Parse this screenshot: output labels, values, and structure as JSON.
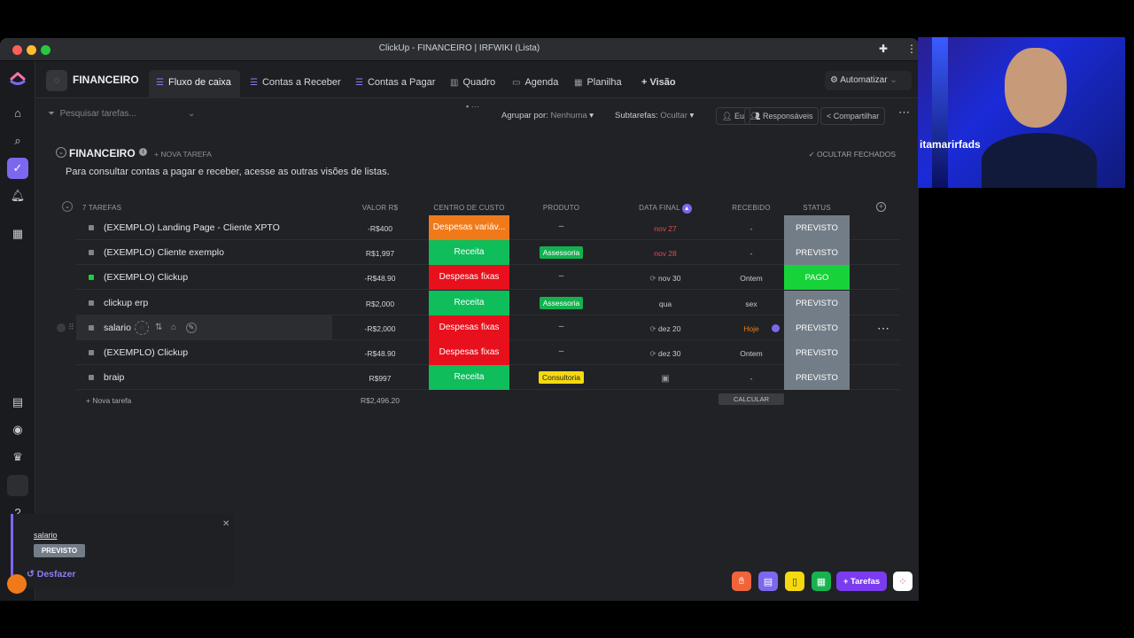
{
  "window": {
    "title": "ClickUp - FINANCEIRO | IRFWIKI (Lista)"
  },
  "header": {
    "space_name": "FINANCEIRO",
    "tabs": [
      {
        "label": "Fluxo de caixa",
        "icon": "list-icon",
        "active": true
      },
      {
        "label": "Contas a Receber",
        "icon": "list-icon"
      },
      {
        "label": "Contas a Pagar",
        "icon": "list-icon"
      },
      {
        "label": "Quadro",
        "icon": "board-icon"
      },
      {
        "label": "Agenda",
        "icon": "calendar-icon"
      },
      {
        "label": "Planilha",
        "icon": "table-icon"
      }
    ],
    "add_view_label": "+ Visão",
    "automate_label": "Automatizar"
  },
  "toolbar": {
    "search_placeholder": "Pesquisar tarefas...",
    "group_by_label": "Agrupar por:",
    "group_by_value": "Nenhuma",
    "subtasks_label": "Subtarefas:",
    "subtasks_value": "Ocultar",
    "me_label": "Eu",
    "assignees_label": "Responsáveis",
    "share_label": "Compartilhar"
  },
  "list": {
    "title": "FINANCEIRO",
    "new_task_label": "+ NOVA TAREFA",
    "hide_closed_label": "OCULTAR FECHADOS",
    "description": "Para consultar contas a pagar e receber, acesse as outras visões de listas.",
    "task_count_label": "7 TAREFAS",
    "columns": {
      "value": "VALOR R$",
      "cost_center": "CENTRO DE CUSTO",
      "product": "PRODUTO",
      "due_date": "DATA FINAL",
      "received": "RECEBIDO",
      "status": "STATUS"
    },
    "rows": [
      {
        "name": "(EXEMPLO) Landing Page - Cliente XPTO",
        "value": "-R$400",
        "cost_center": "Despesas variáv...",
        "cc_color": "#f07a1a",
        "product": "–",
        "product_color": "",
        "date": "nov 27",
        "date_color": "#e5484d",
        "received": "-",
        "status": "PREVISTO",
        "status_color": "#737d87",
        "square": "#80858d"
      },
      {
        "name": "(EXEMPLO) Cliente exemplo",
        "value": "R$1,997",
        "cost_center": "Receita",
        "cc_color": "#0fbd5b",
        "product": "Assessoria",
        "product_color": "#13b24f",
        "date": "nov 28",
        "date_color": "#e5484d",
        "received": "-",
        "status": "PREVISTO",
        "status_color": "#737d87",
        "square": "#80858d"
      },
      {
        "name": "(EXEMPLO) Clickup",
        "value": "-R$48.90",
        "cost_center": "Despesas fixas",
        "cc_color": "#e8101c",
        "product": "–",
        "product_color": "",
        "date": "nov 30",
        "date_color": "#c8cacf",
        "received": "Ontem",
        "status": "PAGO",
        "status_color": "#18d23a",
        "square": "#18d23a"
      },
      {
        "name": "clickup erp",
        "value": "R$2,000",
        "cost_center": "Receita",
        "cc_color": "#0fbd5b",
        "product": "Assessoria",
        "product_color": "#13b24f",
        "date": "qua",
        "date_color": "#c8cacf",
        "received": "sex",
        "status": "PREVISTO",
        "status_color": "#737d87",
        "square": "#80858d"
      },
      {
        "name": "salario",
        "value": "-R$2,000",
        "cost_center": "Despesas fixas",
        "cc_color": "#e8101c",
        "product": "–",
        "product_color": "",
        "date": "dez 20",
        "date_color": "#c8cacf",
        "received": "Hoje",
        "received_color": "#f07a1a",
        "status": "PREVISTO",
        "status_color": "#737d87",
        "square": "#80858d"
      },
      {
        "name": "(EXEMPLO) Clickup",
        "value": "-R$48.90",
        "cost_center": "Despesas fixas",
        "cc_color": "#e8101c",
        "product": "–",
        "product_color": "",
        "date": "dez 30",
        "date_color": "#c8cacf",
        "received": "Ontem",
        "status": "PREVISTO",
        "status_color": "#737d87",
        "square": "#80858d"
      },
      {
        "name": "braip",
        "value": "R$997",
        "cost_center": "Receita",
        "cc_color": "#0fbd5b",
        "product": "Consultoria",
        "product_color": "#f6d90f",
        "date": "",
        "date_color": "#c8cacf",
        "received": "-",
        "status": "PREVISTO",
        "status_color": "#737d87",
        "square": "#80858d"
      }
    ],
    "footer": {
      "add_task": "+ Nova tarefa",
      "sum": "R$2,496.20",
      "calc": "CALCULAR"
    }
  },
  "toast": {
    "task": "salario",
    "status": "PREVISTO",
    "undo_label": "Desfazer"
  },
  "dock": {
    "tasks_label": "Tarefas"
  },
  "webcam": {
    "name_label": "itamarirfads"
  }
}
